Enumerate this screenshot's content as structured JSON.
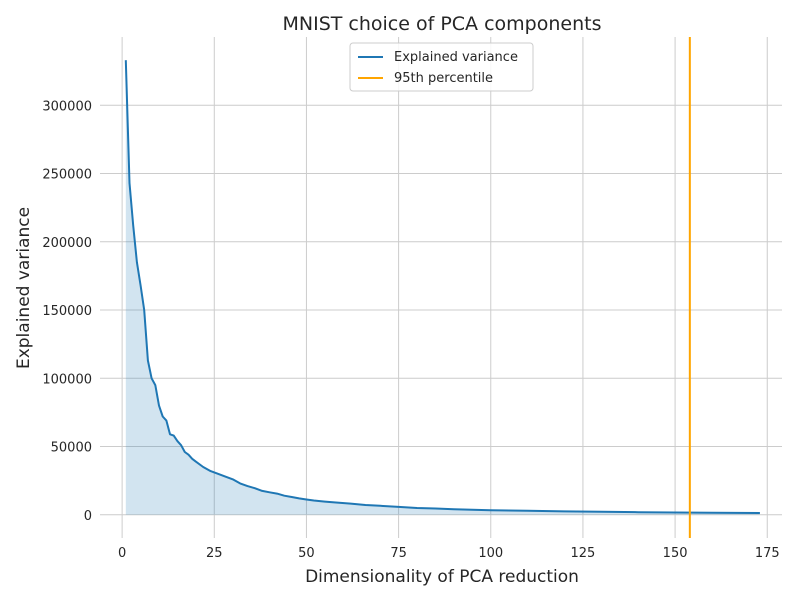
{
  "chart_data": {
    "type": "area",
    "title": "MNIST choice of PCA components",
    "xlabel": "Dimensionality of PCA reduction",
    "ylabel": "Explained variance",
    "xlim": [
      -6,
      179
    ],
    "ylim": [
      -17000,
      350000
    ],
    "xticks": [
      0,
      25,
      50,
      75,
      100,
      125,
      150,
      175
    ],
    "yticks": [
      0,
      50000,
      100000,
      150000,
      200000,
      250000,
      300000
    ],
    "grid": true,
    "legend_position": "top-center",
    "series": [
      {
        "name": "Explained variance",
        "color": "#1f77b4",
        "fill_color": "#1f77b4",
        "fill_opacity": 0.2,
        "x": [
          1,
          2,
          3,
          4,
          5,
          6,
          7,
          8,
          9,
          10,
          11,
          12,
          13,
          14,
          15,
          16,
          17,
          18,
          19,
          20,
          22,
          24,
          26,
          28,
          30,
          32,
          34,
          36,
          38,
          40,
          42,
          44,
          46,
          48,
          50,
          52,
          55,
          58,
          62,
          66,
          70,
          75,
          80,
          85,
          90,
          95,
          100,
          110,
          120,
          130,
          140,
          150,
          160,
          173
        ],
        "values": [
          333000,
          243000,
          212000,
          185000,
          168000,
          150000,
          113000,
          100000,
          95000,
          80000,
          72000,
          69000,
          59000,
          58000,
          54000,
          51000,
          46000,
          44000,
          41000,
          39000,
          35000,
          32000,
          30000,
          28000,
          26000,
          23000,
          21000,
          19500,
          17500,
          16500,
          15500,
          14000,
          13000,
          12000,
          11200,
          10500,
          9700,
          9000,
          8200,
          7200,
          6600,
          5800,
          5000,
          4600,
          4100,
          3700,
          3400,
          2900,
          2500,
          2200,
          1900,
          1700,
          1550,
          1350
        ]
      },
      {
        "name": "95th percentile",
        "type": "vline",
        "color": "#ffa500",
        "x": 154
      }
    ]
  }
}
